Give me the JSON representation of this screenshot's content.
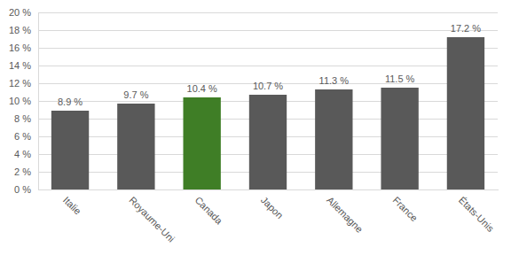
{
  "chart_data": {
    "type": "bar",
    "categories": [
      "Italie",
      "Royaume-Uni",
      "Canada",
      "Japon",
      "Allemagne",
      "France",
      "États-Unis"
    ],
    "values": [
      8.9,
      9.7,
      10.4,
      10.7,
      11.3,
      11.5,
      17.2
    ],
    "value_labels": [
      "8.9 %",
      "9.7 %",
      "10.4 %",
      "10.7 %",
      "11.3 %",
      "11.5 %",
      "17.2 %"
    ],
    "colors": [
      "#595959",
      "#595959",
      "#3f7e26",
      "#595959",
      "#595959",
      "#595959",
      "#595959"
    ],
    "ylim": [
      0,
      20
    ],
    "yticks": [
      {
        "value": 0,
        "label": "0 %"
      },
      {
        "value": 2,
        "label": "2 %"
      },
      {
        "value": 4,
        "label": "4 %"
      },
      {
        "value": 6,
        "label": "6 %"
      },
      {
        "value": 8,
        "label": "8 %"
      },
      {
        "value": 10,
        "label": "10 %"
      },
      {
        "value": 12,
        "label": "12 %"
      },
      {
        "value": 14,
        "label": "14 %"
      },
      {
        "value": 16,
        "label": "16 %"
      },
      {
        "value": 18,
        "label": "18 %"
      },
      {
        "value": 20,
        "label": "20 %"
      }
    ],
    "grid": true,
    "data_labels": true
  }
}
